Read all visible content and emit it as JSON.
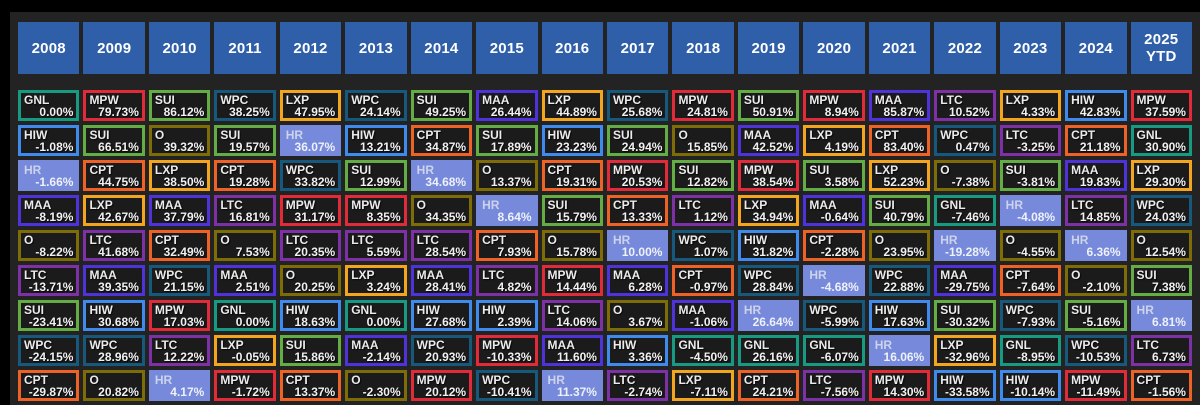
{
  "colors": {
    "header_blue": "#2e5fa8",
    "panel_bg": "#232323",
    "cell_bg": "#1b1b1b"
  },
  "tickers": {
    "GNL": "#169b82",
    "MPW": "#e22b38",
    "SUI": "#64ad45",
    "WPC": "#16597c",
    "LXP": "#f3a61d",
    "HIW": "#3e8bed",
    "O": "#7e6d07",
    "MAA": "#4f33da",
    "LTC": "#7e30a6",
    "CPT": "#ee6225",
    "HR": "#7689da"
  },
  "chart_data": {
    "type": "table",
    "title": "Annual total returns ranked by year (REIT tickers)",
    "columns": [
      "2008",
      "2009",
      "2010",
      "2011",
      "2012",
      "2013",
      "2014",
      "2015",
      "2016",
      "2017",
      "2018",
      "2019",
      "2020",
      "2021",
      "2022",
      "2023",
      "2024",
      "2025 YTD"
    ],
    "rows": [
      [
        {
          "t": "GNL",
          "v": "0.00%"
        },
        {
          "t": "MPW",
          "v": "79.73%"
        },
        {
          "t": "SUI",
          "v": "86.12%"
        },
        {
          "t": "WPC",
          "v": "38.25%"
        },
        {
          "t": "LXP",
          "v": "47.95%"
        },
        {
          "t": "WPC",
          "v": "24.14%"
        },
        {
          "t": "SUI",
          "v": "49.25%"
        },
        {
          "t": "MAA",
          "v": "26.44%"
        },
        {
          "t": "LXP",
          "v": "44.89%"
        },
        {
          "t": "WPC",
          "v": "25.68%"
        },
        {
          "t": "MPW",
          "v": "24.81%"
        },
        {
          "t": "SUI",
          "v": "50.91%"
        },
        {
          "t": "MPW",
          "v": "8.94%"
        },
        {
          "t": "MAA",
          "v": "85.87%"
        },
        {
          "t": "LTC",
          "v": "10.52%"
        },
        {
          "t": "LXP",
          "v": "4.33%"
        },
        {
          "t": "HIW",
          "v": "42.83%"
        },
        {
          "t": "MPW",
          "v": "37.59%"
        }
      ],
      [
        {
          "t": "HIW",
          "v": "-1.08%"
        },
        {
          "t": "SUI",
          "v": "66.51%"
        },
        {
          "t": "O",
          "v": "39.32%"
        },
        {
          "t": "SUI",
          "v": "19.57%"
        },
        {
          "t": "HR",
          "v": "36.07%"
        },
        {
          "t": "HIW",
          "v": "13.21%"
        },
        {
          "t": "CPT",
          "v": "34.87%"
        },
        {
          "t": "SUI",
          "v": "17.89%"
        },
        {
          "t": "HIW",
          "v": "23.23%"
        },
        {
          "t": "SUI",
          "v": "24.94%"
        },
        {
          "t": "O",
          "v": "15.85%"
        },
        {
          "t": "MAA",
          "v": "42.52%"
        },
        {
          "t": "LXP",
          "v": "4.19%"
        },
        {
          "t": "CPT",
          "v": "83.40%"
        },
        {
          "t": "WPC",
          "v": "0.47%"
        },
        {
          "t": "LTC",
          "v": "-3.25%"
        },
        {
          "t": "CPT",
          "v": "21.18%"
        },
        {
          "t": "GNL",
          "v": "30.90%"
        }
      ],
      [
        {
          "t": "HR",
          "v": "-1.66%"
        },
        {
          "t": "CPT",
          "v": "44.75%"
        },
        {
          "t": "LXP",
          "v": "38.50%"
        },
        {
          "t": "CPT",
          "v": "19.28%"
        },
        {
          "t": "WPC",
          "v": "33.82%"
        },
        {
          "t": "SUI",
          "v": "12.99%"
        },
        {
          "t": "HR",
          "v": "34.68%"
        },
        {
          "t": "O",
          "v": "13.37%"
        },
        {
          "t": "CPT",
          "v": "19.31%"
        },
        {
          "t": "MPW",
          "v": "20.53%"
        },
        {
          "t": "SUI",
          "v": "12.82%"
        },
        {
          "t": "MPW",
          "v": "38.54%"
        },
        {
          "t": "SUI",
          "v": "3.58%"
        },
        {
          "t": "LXP",
          "v": "52.23%"
        },
        {
          "t": "O",
          "v": "-7.38%"
        },
        {
          "t": "SUI",
          "v": "-3.81%"
        },
        {
          "t": "MAA",
          "v": "19.83%"
        },
        {
          "t": "LXP",
          "v": "29.30%"
        }
      ],
      [
        {
          "t": "MAA",
          "v": "-8.19%"
        },
        {
          "t": "LXP",
          "v": "42.67%"
        },
        {
          "t": "MAA",
          "v": "37.79%"
        },
        {
          "t": "LTC",
          "v": "16.81%"
        },
        {
          "t": "MPW",
          "v": "31.17%"
        },
        {
          "t": "MPW",
          "v": "8.35%"
        },
        {
          "t": "O",
          "v": "34.35%"
        },
        {
          "t": "HR",
          "v": "8.64%"
        },
        {
          "t": "SUI",
          "v": "15.79%"
        },
        {
          "t": "CPT",
          "v": "13.33%"
        },
        {
          "t": "LTC",
          "v": "1.12%"
        },
        {
          "t": "LXP",
          "v": "34.94%"
        },
        {
          "t": "MAA",
          "v": "-0.64%"
        },
        {
          "t": "SUI",
          "v": "40.79%"
        },
        {
          "t": "GNL",
          "v": "-7.46%"
        },
        {
          "t": "HR",
          "v": "-4.08%"
        },
        {
          "t": "LTC",
          "v": "14.85%"
        },
        {
          "t": "WPC",
          "v": "24.03%"
        }
      ],
      [
        {
          "t": "O",
          "v": "-8.22%"
        },
        {
          "t": "LTC",
          "v": "41.68%"
        },
        {
          "t": "CPT",
          "v": "32.49%"
        },
        {
          "t": "O",
          "v": "7.53%"
        },
        {
          "t": "LTC",
          "v": "20.35%"
        },
        {
          "t": "LTC",
          "v": "5.59%"
        },
        {
          "t": "LTC",
          "v": "28.54%"
        },
        {
          "t": "CPT",
          "v": "7.93%"
        },
        {
          "t": "O",
          "v": "15.78%"
        },
        {
          "t": "HR",
          "v": "10.00%"
        },
        {
          "t": "WPC",
          "v": "1.07%"
        },
        {
          "t": "HIW",
          "v": "31.82%"
        },
        {
          "t": "CPT",
          "v": "-2.28%"
        },
        {
          "t": "O",
          "v": "23.95%"
        },
        {
          "t": "HR",
          "v": "-19.28%"
        },
        {
          "t": "O",
          "v": "-4.55%"
        },
        {
          "t": "HR",
          "v": "6.36%"
        },
        {
          "t": "O",
          "v": "12.54%"
        }
      ],
      [
        {
          "t": "LTC",
          "v": "-13.71%"
        },
        {
          "t": "MAA",
          "v": "39.35%"
        },
        {
          "t": "WPC",
          "v": "21.15%"
        },
        {
          "t": "MAA",
          "v": "2.51%"
        },
        {
          "t": "O",
          "v": "20.25%"
        },
        {
          "t": "LXP",
          "v": "3.24%"
        },
        {
          "t": "MAA",
          "v": "28.41%"
        },
        {
          "t": "LTC",
          "v": "4.82%"
        },
        {
          "t": "MPW",
          "v": "14.44%"
        },
        {
          "t": "MAA",
          "v": "6.28%"
        },
        {
          "t": "CPT",
          "v": "-0.97%"
        },
        {
          "t": "WPC",
          "v": "28.84%"
        },
        {
          "t": "HR",
          "v": "-4.68%"
        },
        {
          "t": "WPC",
          "v": "22.88%"
        },
        {
          "t": "MAA",
          "v": "-29.75%"
        },
        {
          "t": "CPT",
          "v": "-7.64%"
        },
        {
          "t": "O",
          "v": "-2.10%"
        },
        {
          "t": "SUI",
          "v": "7.38%"
        }
      ],
      [
        {
          "t": "SUI",
          "v": "-23.41%"
        },
        {
          "t": "HIW",
          "v": "30.68%"
        },
        {
          "t": "MPW",
          "v": "17.03%"
        },
        {
          "t": "GNL",
          "v": "0.00%"
        },
        {
          "t": "HIW",
          "v": "18.63%"
        },
        {
          "t": "GNL",
          "v": "0.00%"
        },
        {
          "t": "HIW",
          "v": "27.68%"
        },
        {
          "t": "HIW",
          "v": "2.39%"
        },
        {
          "t": "LTC",
          "v": "14.06%"
        },
        {
          "t": "O",
          "v": "3.67%"
        },
        {
          "t": "MAA",
          "v": "-1.06%"
        },
        {
          "t": "HR",
          "v": "26.64%"
        },
        {
          "t": "WPC",
          "v": "-5.99%"
        },
        {
          "t": "HIW",
          "v": "17.63%"
        },
        {
          "t": "SUI",
          "v": "-30.32%"
        },
        {
          "t": "WPC",
          "v": "-7.93%"
        },
        {
          "t": "SUI",
          "v": "-5.16%"
        },
        {
          "t": "HR",
          "v": "6.81%"
        }
      ],
      [
        {
          "t": "WPC",
          "v": "-24.15%"
        },
        {
          "t": "WPC",
          "v": "28.96%"
        },
        {
          "t": "LTC",
          "v": "12.22%"
        },
        {
          "t": "LXP",
          "v": "-0.05%"
        },
        {
          "t": "SUI",
          "v": "15.86%"
        },
        {
          "t": "MAA",
          "v": "-2.14%"
        },
        {
          "t": "WPC",
          "v": "20.93%"
        },
        {
          "t": "MPW",
          "v": "-10.33%"
        },
        {
          "t": "MAA",
          "v": "11.60%"
        },
        {
          "t": "HIW",
          "v": "3.36%"
        },
        {
          "t": "GNL",
          "v": "-4.50%"
        },
        {
          "t": "GNL",
          "v": "26.16%"
        },
        {
          "t": "GNL",
          "v": "-6.07%"
        },
        {
          "t": "HR",
          "v": "16.06%"
        },
        {
          "t": "LXP",
          "v": "-32.96%"
        },
        {
          "t": "GNL",
          "v": "-8.95%"
        },
        {
          "t": "WPC",
          "v": "-10.53%"
        },
        {
          "t": "LTC",
          "v": "6.73%"
        }
      ],
      [
        {
          "t": "CPT",
          "v": "-29.87%"
        },
        {
          "t": "O",
          "v": "20.82%"
        },
        {
          "t": "HR",
          "v": "4.17%"
        },
        {
          "t": "MPW",
          "v": "-1.72%"
        },
        {
          "t": "CPT",
          "v": "13.37%"
        },
        {
          "t": "O",
          "v": "-2.30%"
        },
        {
          "t": "MPW",
          "v": "20.12%"
        },
        {
          "t": "WPC",
          "v": "-10.41%"
        },
        {
          "t": "HR",
          "v": "11.37%"
        },
        {
          "t": "LTC",
          "v": "-2.74%"
        },
        {
          "t": "LXP",
          "v": "-7.11%"
        },
        {
          "t": "CPT",
          "v": "24.21%"
        },
        {
          "t": "LTC",
          "v": "-7.56%"
        },
        {
          "t": "MPW",
          "v": "14.30%"
        },
        {
          "t": "HIW",
          "v": "-33.58%"
        },
        {
          "t": "HIW",
          "v": "-10.14%"
        },
        {
          "t": "MPW",
          "v": "-11.49%"
        },
        {
          "t": "CPT",
          "v": "-1.56%"
        }
      ]
    ]
  }
}
